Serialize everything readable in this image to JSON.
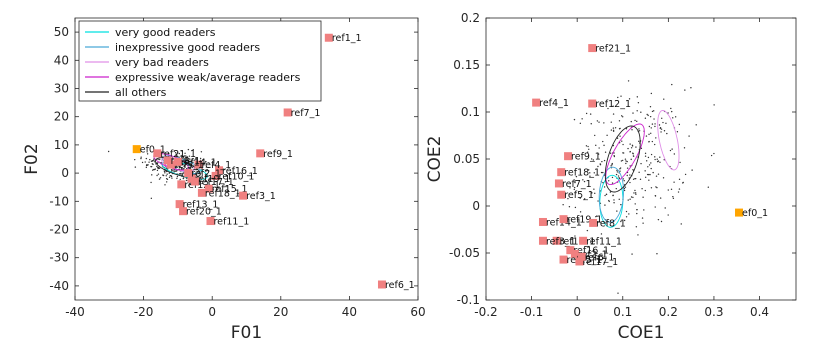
{
  "chart_data": [
    {
      "type": "scatter",
      "title": "",
      "xlabel": "F01",
      "ylabel": "F02",
      "xlim": [
        -40,
        60
      ],
      "ylim": [
        -45,
        55
      ],
      "xticks": [
        -40,
        -20,
        0,
        20,
        40,
        60
      ],
      "yticks": [
        -40,
        -30,
        -20,
        -10,
        0,
        10,
        20,
        30,
        40,
        50
      ],
      "grid": false,
      "legend_position": "top-left",
      "legend": [
        {
          "label": "very good readers",
          "color": "#00e0e0"
        },
        {
          "label": "inexpressive good readers",
          "color": "#4aa9d8"
        },
        {
          "label": "very bad readers",
          "color": "#e090e8"
        },
        {
          "label": "expressive weak/average readers",
          "color": "#cc22cc"
        },
        {
          "label": "all others",
          "color": "#222222"
        }
      ],
      "cloud": {
        "center": [
          -10,
          2
        ],
        "spread": [
          5,
          3
        ],
        "count": 320,
        "slope": -0.35
      },
      "ellipses": [
        {
          "series": "very good readers",
          "color": "#00e0e0",
          "center": [
            -8,
            1
          ],
          "radii": [
            7,
            2.2
          ],
          "angle": -20
        },
        {
          "series": "inexpressive good readers",
          "color": "#4aa9d8",
          "center": [
            -9,
            3
          ],
          "radii": [
            6,
            2
          ],
          "angle": -25
        },
        {
          "series": "very bad readers",
          "color": "#e090e8",
          "center": [
            -10,
            3
          ],
          "radii": [
            5,
            1.8
          ],
          "angle": -20
        },
        {
          "series": "expressive weak/average readers",
          "color": "#cc22cc",
          "center": [
            -12,
            4
          ],
          "radii": [
            5.5,
            2
          ],
          "angle": -25
        },
        {
          "series": "all others",
          "color": "#222222",
          "center": [
            -10,
            2
          ],
          "radii": [
            7,
            2.5
          ],
          "angle": -22
        }
      ],
      "points": [
        {
          "label": "ref1_1",
          "x": 34,
          "y": 48,
          "color": "#f08080"
        },
        {
          "label": "ref7_1",
          "x": 22,
          "y": 21.5,
          "color": "#f08080"
        },
        {
          "label": "ref9_1",
          "x": 14,
          "y": 7,
          "color": "#f08080"
        },
        {
          "label": "ref6_1",
          "x": 49.5,
          "y": -39.5,
          "color": "#f08080"
        },
        {
          "label": "ef0_1",
          "x": -22,
          "y": 8.5,
          "color": "#ffa500"
        },
        {
          "label": "ref21_1",
          "x": -16,
          "y": 7,
          "color": "#f08080"
        },
        {
          "label": "ref16_1",
          "x": 2,
          "y": 1,
          "color": "#f08080"
        },
        {
          "label": "ref10_1",
          "x": 1,
          "y": -1,
          "color": "#f08080"
        },
        {
          "label": "ref4_1",
          "x": -4,
          "y": 3,
          "color": "#f08080"
        },
        {
          "label": "ref12_1",
          "x": -9,
          "y": -4,
          "color": "#f08080"
        },
        {
          "label": "ref15_1",
          "x": -1,
          "y": -5.5,
          "color": "#f08080"
        },
        {
          "label": "ref18_1",
          "x": -3,
          "y": -7,
          "color": "#f08080"
        },
        {
          "label": "ref3_1",
          "x": 9,
          "y": -8,
          "color": "#f08080"
        },
        {
          "label": "ref13_1",
          "x": -9.5,
          "y": -11,
          "color": "#f08080"
        },
        {
          "label": "ref20_1",
          "x": -8.5,
          "y": -13.5,
          "color": "#f08080"
        },
        {
          "label": "ref11_1",
          "x": -0.5,
          "y": -17,
          "color": "#f08080"
        },
        {
          "label": "ref19_1",
          "x": -6,
          "y": -2,
          "color": "#f08080"
        },
        {
          "label": "ref5_1",
          "x": -12,
          "y": 3,
          "color": "#f08080"
        },
        {
          "label": "ref8_1",
          "x": -13,
          "y": 4.5,
          "color": "#f08080"
        },
        {
          "label": "ref2_1",
          "x": -7,
          "y": 0,
          "color": "#f08080"
        },
        {
          "label": "ref14_1",
          "x": -10,
          "y": 4,
          "color": "#f08080"
        },
        {
          "label": "ref17_1",
          "x": -5,
          "y": -3,
          "color": "#f08080"
        }
      ]
    },
    {
      "type": "scatter",
      "title": "",
      "xlabel": "COE1",
      "ylabel": "COE2",
      "xlim": [
        -0.2,
        0.48
      ],
      "ylim": [
        -0.1,
        0.2
      ],
      "xticks": [
        -0.2,
        -0.1,
        0,
        0.1,
        0.2,
        0.3,
        0.4
      ],
      "yticks": [
        -0.1,
        -0.05,
        0,
        0.05,
        0.1,
        0.15,
        0.2
      ],
      "grid": false,
      "cloud": {
        "center": [
          0.12,
          0.045
        ],
        "spread": [
          0.06,
          0.035
        ],
        "count": 340,
        "slope": 0.15
      },
      "ellipses": [
        {
          "series": "very good readers",
          "color": "#00e0e0",
          "center": [
            0.075,
            0.005
          ],
          "radii": [
            0.028,
            0.025
          ],
          "angle": 70
        },
        {
          "series": "inexpressive good readers",
          "color": "#4aa9d8",
          "center": [
            0.075,
            0.012
          ],
          "radii": [
            0.03,
            0.026
          ],
          "angle": 65
        },
        {
          "series": "very bad readers",
          "color": "#e090e8",
          "center": [
            0.2,
            0.07
          ],
          "radii": [
            0.035,
            0.018
          ],
          "angle": -60
        },
        {
          "series": "expressive weak/average readers",
          "color": "#cc22cc",
          "center": [
            0.105,
            0.055
          ],
          "radii": [
            0.05,
            0.018
          ],
          "angle": 35
        },
        {
          "series": "all others",
          "color": "#222222",
          "center": [
            0.1,
            0.05
          ],
          "radii": [
            0.045,
            0.026
          ],
          "angle": 40
        }
      ],
      "points": [
        {
          "label": "ref21_1",
          "x": 0.033,
          "y": 0.168,
          "color": "#f08080"
        },
        {
          "label": "ref4_1",
          "x": -0.09,
          "y": 0.11,
          "color": "#f08080"
        },
        {
          "label": "ref12_1",
          "x": 0.033,
          "y": 0.109,
          "color": "#f08080"
        },
        {
          "label": "ref9_1",
          "x": -0.02,
          "y": 0.053,
          "color": "#f08080"
        },
        {
          "label": "ref18_1",
          "x": -0.035,
          "y": 0.036,
          "color": "#f08080"
        },
        {
          "label": "ref7_1",
          "x": -0.04,
          "y": 0.024,
          "color": "#f08080"
        },
        {
          "label": "ref5_1",
          "x": -0.035,
          "y": 0.012,
          "color": "#f08080"
        },
        {
          "label": "ef0_1",
          "x": 0.355,
          "y": -0.007,
          "color": "#ffa500"
        },
        {
          "label": "ref14_1",
          "x": -0.075,
          "y": -0.017,
          "color": "#f08080"
        },
        {
          "label": "ref19_1",
          "x": -0.03,
          "y": -0.014,
          "color": "#f08080"
        },
        {
          "label": "ref8_1",
          "x": 0.035,
          "y": -0.018,
          "color": "#f08080"
        },
        {
          "label": "ref10_1",
          "x": -0.045,
          "y": -0.037,
          "color": "#f08080"
        },
        {
          "label": "ref3_1",
          "x": -0.075,
          "y": -0.037,
          "color": "#f08080"
        },
        {
          "label": "ref11_1",
          "x": 0.013,
          "y": -0.037,
          "color": "#f08080"
        },
        {
          "label": "ref16_1",
          "x": -0.015,
          "y": -0.047,
          "color": "#f08080"
        },
        {
          "label": "ref2_1",
          "x": -0.005,
          "y": -0.051,
          "color": "#f08080"
        },
        {
          "label": "ref15_1",
          "x": -0.03,
          "y": -0.057,
          "color": "#f08080"
        },
        {
          "label": "ref17_1",
          "x": 0.005,
          "y": -0.059,
          "color": "#f08080"
        },
        {
          "label": "ref6_1",
          "x": 0.01,
          "y": -0.054,
          "color": "#f08080"
        }
      ]
    }
  ]
}
